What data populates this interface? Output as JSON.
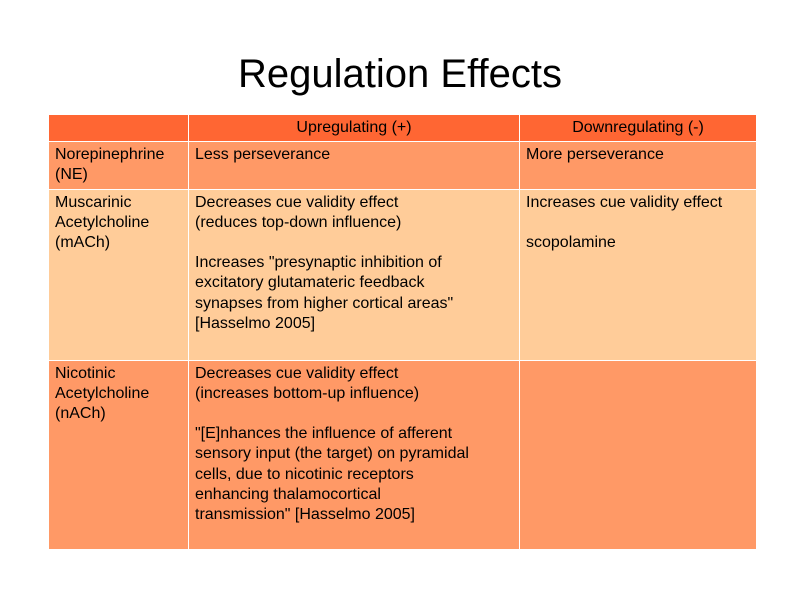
{
  "title": "Regulation Effects",
  "table": {
    "headers": [
      "",
      "Upregulating (+)",
      "Downregulating (-)"
    ],
    "rows": [
      {
        "agent": "Norepinephrine\n(NE)",
        "up": [
          "Less perseverance"
        ],
        "down": [
          "More perseverance"
        ]
      },
      {
        "agent": "Muscarinic\nAcetylcholine\n(mACh)",
        "up": [
          "Decreases cue validity effect\n(reduces top-down influence)",
          "Increases \"presynaptic inhibition of\nexcitatory glutamateric feedback\nsynapses from higher cortical areas\"\n[Hasselmo 2005]"
        ],
        "down": [
          "Increases cue validity effect",
          "scopolamine"
        ]
      },
      {
        "agent": "Nicotinic\nAcetylcholine\n(nACh)",
        "up": [
          "Decreases cue validity effect\n(increases bottom-up influence)",
          "\"[E]nhances the influence of afferent\nsensory input (the target) on pyramidal\ncells, due to nicotinic receptors\nenhancing thalamocortical\ntransmission\" [Hasselmo 2005]"
        ],
        "down": []
      }
    ]
  },
  "colors": {
    "header_row": "#ff6633",
    "dark_row": "#ff9966",
    "light_row": "#ffcc99",
    "cell_border": "#ffffff"
  }
}
